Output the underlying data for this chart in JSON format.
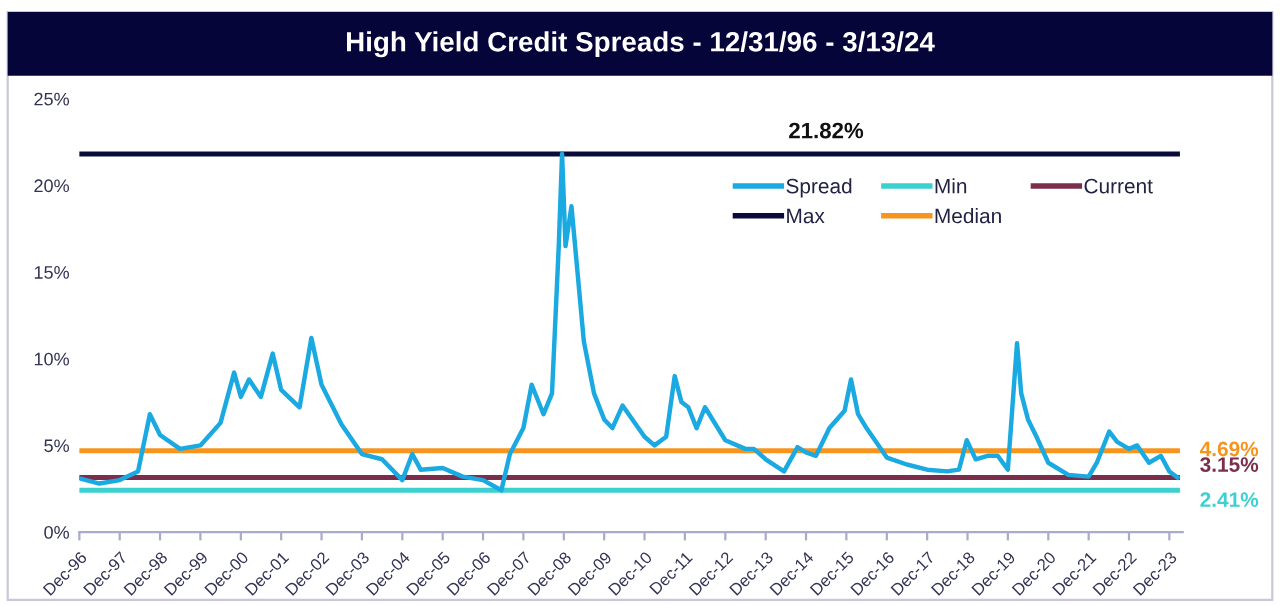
{
  "chart_data": {
    "type": "line",
    "title": "High Yield Credit Spreads - 12/31/96 - 3/13/24",
    "series": [
      {
        "name": "Spread",
        "color": "#1ba9e1",
        "x": [
          "1996-12-31",
          "1997-06-30",
          "1997-12-31",
          "1998-06-15",
          "1998-09-30",
          "1998-12-31",
          "1999-06-30",
          "1999-12-31",
          "2000-06-30",
          "2000-10-31",
          "2000-12-31",
          "2001-03-15",
          "2001-06-30",
          "2001-10-15",
          "2001-12-31",
          "2002-06-15",
          "2002-09-30",
          "2002-12-31",
          "2003-06-30",
          "2003-12-31",
          "2004-06-30",
          "2004-12-31",
          "2005-03-31",
          "2005-06-15",
          "2005-12-31",
          "2006-06-30",
          "2006-12-31",
          "2007-06-15",
          "2007-08-31",
          "2007-12-31",
          "2008-03-15",
          "2008-06-30",
          "2008-09-15",
          "2008-11-15",
          "2008-12-15",
          "2009-01-15",
          "2009-03-10",
          "2009-06-30",
          "2009-09-30",
          "2009-12-31",
          "2010-03-15",
          "2010-06-15",
          "2010-12-31",
          "2011-03-31",
          "2011-07-15",
          "2011-09-30",
          "2011-11-30",
          "2012-01-31",
          "2012-04-15",
          "2012-06-30",
          "2012-12-31",
          "2013-06-30",
          "2013-09-15",
          "2013-12-31",
          "2014-06-15",
          "2014-10-15",
          "2014-12-31",
          "2015-03-31",
          "2015-07-31",
          "2015-12-15",
          "2016-02-11",
          "2016-04-15",
          "2016-06-30",
          "2016-12-31",
          "2017-06-30",
          "2017-12-31",
          "2018-06-30",
          "2018-10-15",
          "2018-12-24",
          "2019-03-15",
          "2019-06-30",
          "2019-09-30",
          "2019-12-31",
          "2020-03-23",
          "2020-04-30",
          "2020-06-30",
          "2020-09-15",
          "2020-12-31",
          "2021-06-30",
          "2021-12-31",
          "2022-03-15",
          "2022-07-05",
          "2022-09-15",
          "2022-12-31",
          "2023-03-15",
          "2023-06-30",
          "2023-10-15",
          "2023-12-31",
          "2024-03-13"
        ],
        "values": [
          3.1,
          2.8,
          3.0,
          3.5,
          6.8,
          5.6,
          4.8,
          5.0,
          6.3,
          9.2,
          7.8,
          8.8,
          7.8,
          10.3,
          8.2,
          7.2,
          11.2,
          8.5,
          6.2,
          4.5,
          4.2,
          3.0,
          4.5,
          3.6,
          3.7,
          3.2,
          3.0,
          2.41,
          4.5,
          6.0,
          8.5,
          6.8,
          8.0,
          16.5,
          21.82,
          16.5,
          18.8,
          11.0,
          8.0,
          6.5,
          6.0,
          7.3,
          5.5,
          5.0,
          5.5,
          9.0,
          7.5,
          7.2,
          6.0,
          7.2,
          5.3,
          4.8,
          4.8,
          4.2,
          3.5,
          4.9,
          4.6,
          4.4,
          6.0,
          7.0,
          8.8,
          6.8,
          6.0,
          4.3,
          3.9,
          3.6,
          3.5,
          3.6,
          5.3,
          4.2,
          4.4,
          4.4,
          3.6,
          10.9,
          8.0,
          6.5,
          5.5,
          4.0,
          3.3,
          3.2,
          4.0,
          5.8,
          5.2,
          4.8,
          5.0,
          4.0,
          4.4,
          3.5,
          3.15
        ]
      },
      {
        "name": "Max",
        "color": "#0b0b3b",
        "x": [
          "1996-12-31",
          "2024-03-13"
        ],
        "values": [
          21.82,
          21.82
        ]
      },
      {
        "name": "Min",
        "color": "#3cd0d0",
        "x": [
          "1996-12-31",
          "2024-03-13"
        ],
        "values": [
          2.41,
          2.41
        ]
      },
      {
        "name": "Median",
        "color": "#f7941d",
        "x": [
          "1996-12-31",
          "2024-03-13"
        ],
        "values": [
          4.69,
          4.69
        ]
      },
      {
        "name": "Current",
        "color": "#7a2e4b",
        "x": [
          "1996-12-31",
          "2024-03-13"
        ],
        "values": [
          3.15,
          3.15
        ]
      }
    ],
    "annotations": [
      {
        "text": "21.82%",
        "x": "2015-06-30",
        "y": 21.82
      },
      {
        "text": "4.69%",
        "x": "2024-03-13",
        "y": 4.69
      },
      {
        "text": "3.15%",
        "x": "2024-03-13",
        "y": 3.15
      },
      {
        "text": "2.41%",
        "x": "2024-03-13",
        "y": 2.41
      }
    ],
    "xlim": [
      "1996-12-31",
      "2024-04-30"
    ],
    "xticks": [
      {
        "value": "1996-12-31",
        "label": "Dec-96"
      },
      {
        "value": "1997-12-31",
        "label": "Dec-97"
      },
      {
        "value": "1998-12-31",
        "label": "Dec-98"
      },
      {
        "value": "1999-12-31",
        "label": "Dec-99"
      },
      {
        "value": "2000-12-31",
        "label": "Dec-00"
      },
      {
        "value": "2001-12-31",
        "label": "Dec-01"
      },
      {
        "value": "2002-12-31",
        "label": "Dec-02"
      },
      {
        "value": "2003-12-31",
        "label": "Dec-03"
      },
      {
        "value": "2004-12-31",
        "label": "Dec-04"
      },
      {
        "value": "2005-12-31",
        "label": "Dec-05"
      },
      {
        "value": "2006-12-31",
        "label": "Dec-06"
      },
      {
        "value": "2007-12-31",
        "label": "Dec-07"
      },
      {
        "value": "2008-12-31",
        "label": "Dec-08"
      },
      {
        "value": "2009-12-31",
        "label": "Dec-09"
      },
      {
        "value": "2010-12-31",
        "label": "Dec-10"
      },
      {
        "value": "2011-12-31",
        "label": "Dec-11"
      },
      {
        "value": "2012-12-31",
        "label": "Dec-12"
      },
      {
        "value": "2013-12-31",
        "label": "Dec-13"
      },
      {
        "value": "2014-12-31",
        "label": "Dec-14"
      },
      {
        "value": "2015-12-31",
        "label": "Dec-15"
      },
      {
        "value": "2016-12-31",
        "label": "Dec-16"
      },
      {
        "value": "2017-12-31",
        "label": "Dec-17"
      },
      {
        "value": "2018-12-31",
        "label": "Dec-18"
      },
      {
        "value": "2019-12-31",
        "label": "Dec-19"
      },
      {
        "value": "2020-12-31",
        "label": "Dec-20"
      },
      {
        "value": "2021-12-31",
        "label": "Dec-21"
      },
      {
        "value": "2022-12-31",
        "label": "Dec-22"
      },
      {
        "value": "2023-12-31",
        "label": "Dec-23"
      }
    ],
    "ylim": [
      0,
      25
    ],
    "yticks": [
      {
        "value": 0,
        "label": "0%"
      },
      {
        "value": 5,
        "label": "5%"
      },
      {
        "value": 10,
        "label": "10%"
      },
      {
        "value": 15,
        "label": "15%"
      },
      {
        "value": 20,
        "label": "20%"
      },
      {
        "value": 25,
        "label": "25%"
      }
    ],
    "grid": false,
    "legend": "top right",
    "marker": "none",
    "line_style": "solid"
  }
}
